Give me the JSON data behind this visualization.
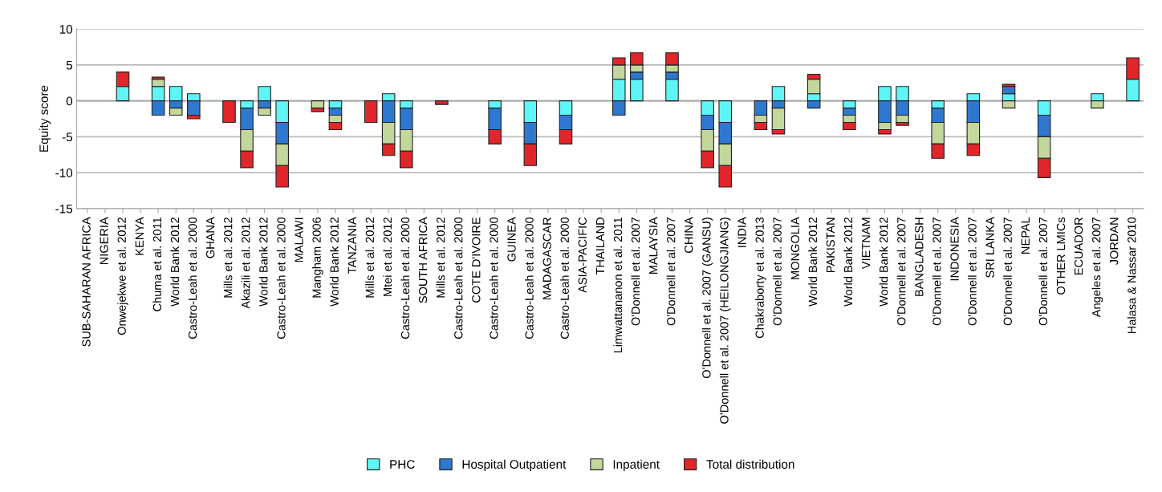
{
  "chart_data": {
    "type": "bar",
    "stacked": true,
    "ylabel": "Equity score",
    "categories": [
      "SUB-SAHARAN AFRICA",
      "NIGERIA",
      "Onwejekwe et al. 2012",
      "KENYA",
      "Chuma et al. 2011",
      "World Bank 2012",
      "Castro-Leah et al. 2000",
      "GHANA",
      "Mills et al. 2012",
      "Akazili et al. 2012",
      "World Bank 2012",
      "Castro-Leah et al. 2000",
      "MALAWI",
      "Mangham 2006",
      "World Bank 2012",
      "TANZANIA",
      "Mills et al. 2012",
      "Mtei et al. 2012",
      "Castro-Leah et al. 2000",
      "SOUTH AFRICA",
      "Mills et al. 2012",
      "Castro-Leah et al. 2000",
      "COTE D'IVOIRE",
      "Castro-Leah et al. 2000",
      "GUINEA",
      "Castro-Leah et al. 2000",
      "MADAGASCAR",
      "Castro-Leah et al. 2000",
      "ASIA-PACIFIC",
      "THAILAND",
      "Limwattananon et al. 2011",
      "O'Donnell et al. 2007",
      "MALAYSIA",
      "O'Donnell et al. 2007",
      "CHINA",
      "O'Donnell et al. 2007 (GANSU)",
      "O'Donnell et al. 2007 (HEILONGJIANG)",
      "INDIA",
      "Chakraborty et al. 2013",
      "O'Donnell et al. 2007",
      "MONGOLIA",
      "World Bank 2012",
      "PAKISTAN",
      "World Bank 2012",
      "VIETNAM",
      "World Bank 2012",
      "O'Donnell et al. 2007",
      "BANGLADESH",
      "O'Donnell et al. 2007",
      "INDONESIA",
      "O'Donnell et al. 2007",
      "SRI LANKA",
      "O'Donnell et al. 2007",
      "NEPAL",
      "O'Donnell et al. 2007",
      "OTHER LMICs",
      "ECUADOR",
      "Angeles et al. 2007",
      "JORDAN",
      "Halasa & Nassar 2010"
    ],
    "series": [
      {
        "name": "PHC",
        "color": "#5ff5f5",
        "values": [
          null,
          null,
          2,
          null,
          2,
          2,
          1,
          null,
          null,
          -1,
          2,
          -3,
          null,
          null,
          -1,
          null,
          null,
          1,
          -1,
          null,
          null,
          null,
          null,
          -1,
          null,
          -3,
          null,
          -2,
          null,
          null,
          3,
          3,
          null,
          3,
          null,
          -2,
          -3,
          null,
          null,
          2,
          null,
          1,
          null,
          -1,
          null,
          2,
          2,
          null,
          -1,
          null,
          1,
          null,
          1,
          null,
          -2,
          null,
          null,
          1,
          null,
          3
        ]
      },
      {
        "name": "Hospital Outpatient",
        "color": "#2f78d0",
        "values": [
          null,
          null,
          null,
          null,
          -2,
          -1,
          -2,
          null,
          null,
          -3,
          -1,
          -3,
          null,
          null,
          -1,
          null,
          null,
          -3,
          -3,
          null,
          null,
          null,
          null,
          -3,
          null,
          -3,
          null,
          -2,
          null,
          null,
          -2,
          1,
          null,
          1,
          null,
          -2,
          -3,
          null,
          -2,
          -1,
          null,
          -1,
          null,
          -1,
          null,
          -3,
          -2,
          null,
          -2,
          null,
          -3,
          null,
          1,
          null,
          -3,
          null,
          null,
          null,
          null,
          null
        ]
      },
      {
        "name": "Inpatient",
        "color": "#c3d69b",
        "values": [
          null,
          null,
          null,
          null,
          1,
          -1,
          null,
          null,
          null,
          -3,
          -1,
          -3,
          null,
          -1,
          -1,
          null,
          null,
          -3,
          -3,
          null,
          null,
          null,
          null,
          null,
          null,
          null,
          null,
          null,
          null,
          null,
          2,
          1,
          null,
          1,
          null,
          -3,
          -3,
          null,
          -1,
          -3,
          null,
          2,
          null,
          -1,
          null,
          -1,
          -1,
          null,
          -3,
          null,
          -3,
          null,
          -1,
          null,
          -3,
          null,
          null,
          -1,
          null,
          null
        ]
      },
      {
        "name": "Total distribution",
        "color": "#e0262a",
        "values": [
          null,
          null,
          2,
          null,
          0.3,
          null,
          -0.5,
          null,
          -3,
          -2.3,
          null,
          -3,
          null,
          -0.5,
          -1,
          null,
          -3,
          -1.6,
          -2.3,
          null,
          -0.5,
          null,
          null,
          -2,
          null,
          -3,
          null,
          -2,
          null,
          null,
          1,
          1.7,
          null,
          1.7,
          null,
          -2.3,
          -3,
          null,
          -1,
          -0.6,
          null,
          0.7,
          null,
          -1,
          null,
          -0.6,
          -0.4,
          null,
          -2,
          null,
          -1.6,
          null,
          0.3,
          null,
          -2.7,
          null,
          null,
          null,
          null,
          3
        ]
      }
    ],
    "ylim": [
      -15,
      10
    ],
    "yticks": [
      -15,
      -10,
      -5,
      0,
      5,
      10
    ],
    "grid": "y",
    "legend": "bottom"
  }
}
